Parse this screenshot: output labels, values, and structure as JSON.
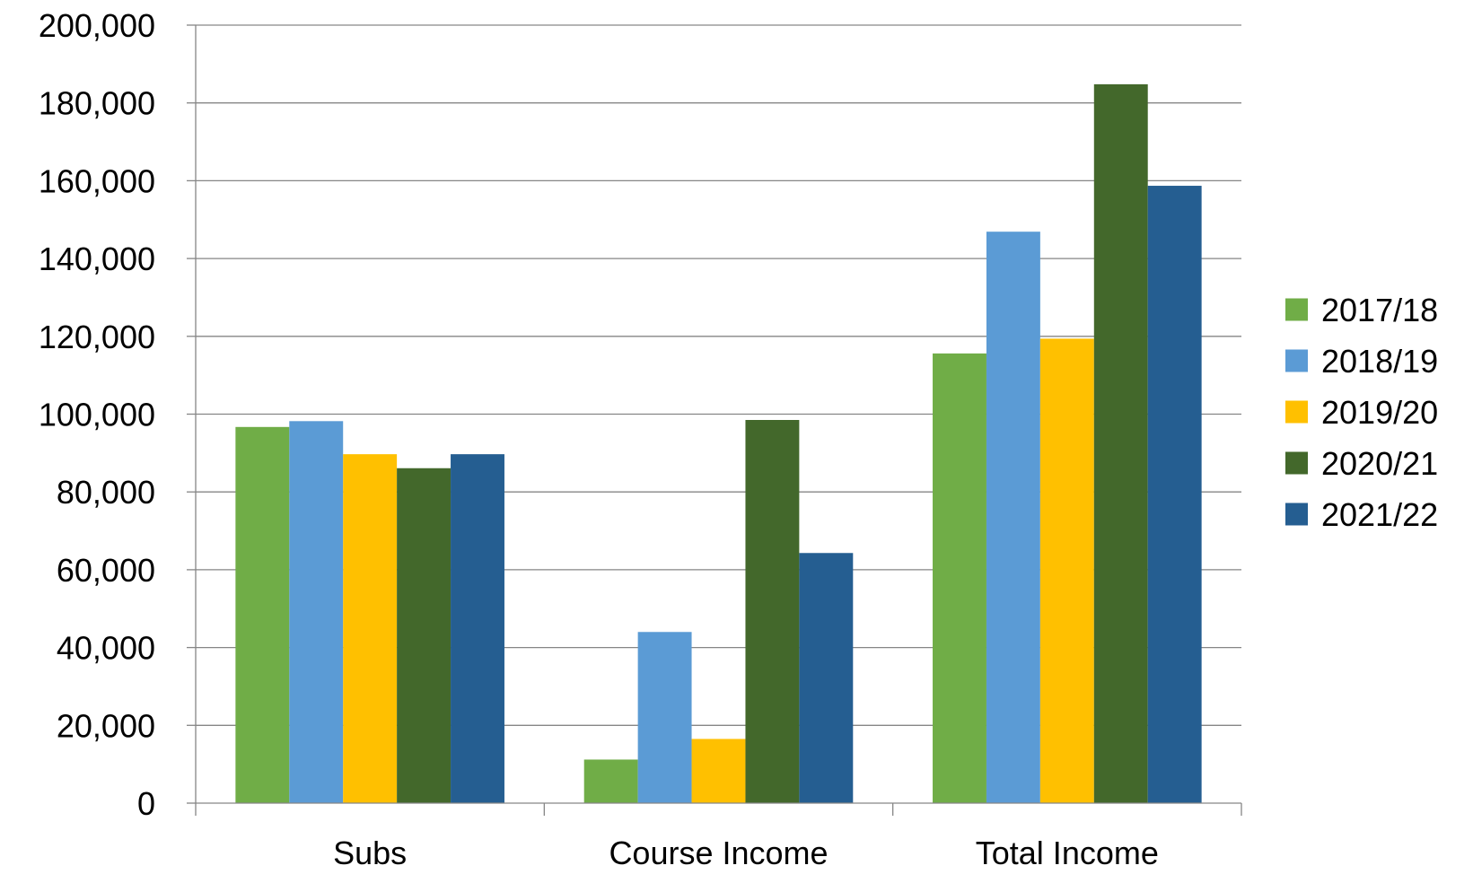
{
  "chart_data": {
    "type": "bar",
    "title": "",
    "xlabel": "",
    "ylabel": "",
    "categories": [
      "Subs",
      "Course Income",
      "Total Income"
    ],
    "ylim": [
      0,
      200000
    ],
    "y_ticks": [
      0,
      20000,
      40000,
      60000,
      80000,
      100000,
      120000,
      140000,
      160000,
      180000,
      200000
    ],
    "y_tick_labels": [
      "0",
      "20,000",
      "40,000",
      "60,000",
      "80,000",
      "100,000",
      "120,000",
      "140,000",
      "160,000",
      "180,000",
      "200,000"
    ],
    "grid": true,
    "legend_position": "right",
    "series": [
      {
        "name": "2017/18",
        "color": "#70AD47",
        "values": [
          96700,
          11200,
          115600
        ]
      },
      {
        "name": "2018/19",
        "color": "#5B9BD5",
        "values": [
          98200,
          44000,
          146900
        ]
      },
      {
        "name": "2019/20",
        "color": "#FFC000",
        "values": [
          89700,
          16500,
          119400
        ]
      },
      {
        "name": "2020/21",
        "color": "#43682B",
        "values": [
          86100,
          98500,
          184800
        ]
      },
      {
        "name": "2021/22",
        "color": "#255E91",
        "values": [
          89700,
          64300,
          158700
        ]
      }
    ]
  }
}
